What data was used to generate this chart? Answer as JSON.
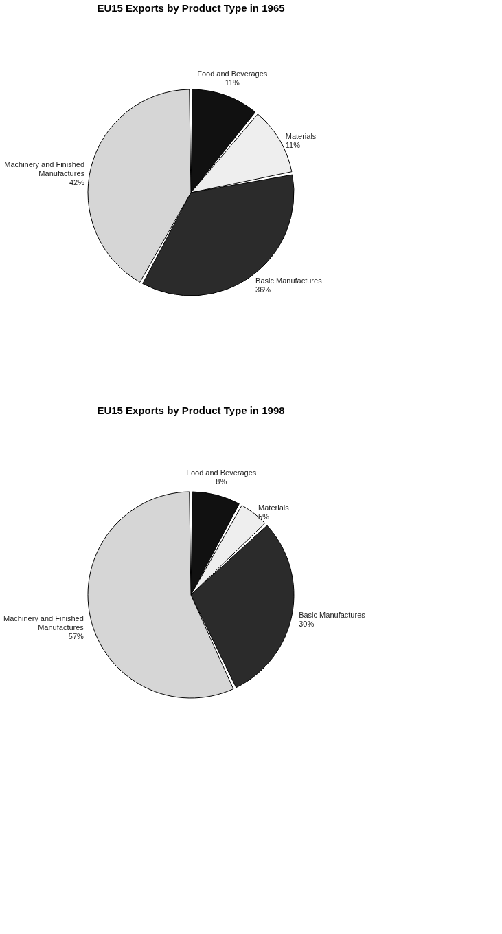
{
  "chart_data": [
    {
      "type": "pie",
      "title": "EU15 Exports by Product Type in 1965",
      "categories": [
        "Food and Beverages",
        "Materials",
        "Basic Manufactures",
        "Machinery and Finished Manufactures"
      ],
      "values": [
        11,
        11,
        36,
        42
      ],
      "value_labels": [
        "11%",
        "11%",
        "36%",
        "42%"
      ],
      "colors": [
        "#111111",
        "#eeeeee",
        "#2b2b2b",
        "#d6d6d6"
      ],
      "legend": false
    },
    {
      "type": "pie",
      "title": "EU15 Exports by Product Type in 1998",
      "categories": [
        "Food and Beverages",
        "Materials",
        "Basic Manufactures",
        "Machinery and Finished Manufactures"
      ],
      "values": [
        8,
        5,
        30,
        57
      ],
      "value_labels": [
        "8%",
        "5%",
        "30%",
        "57%"
      ],
      "colors": [
        "#111111",
        "#eeeeee",
        "#2b2b2b",
        "#d6d6d6"
      ],
      "legend": false
    }
  ]
}
